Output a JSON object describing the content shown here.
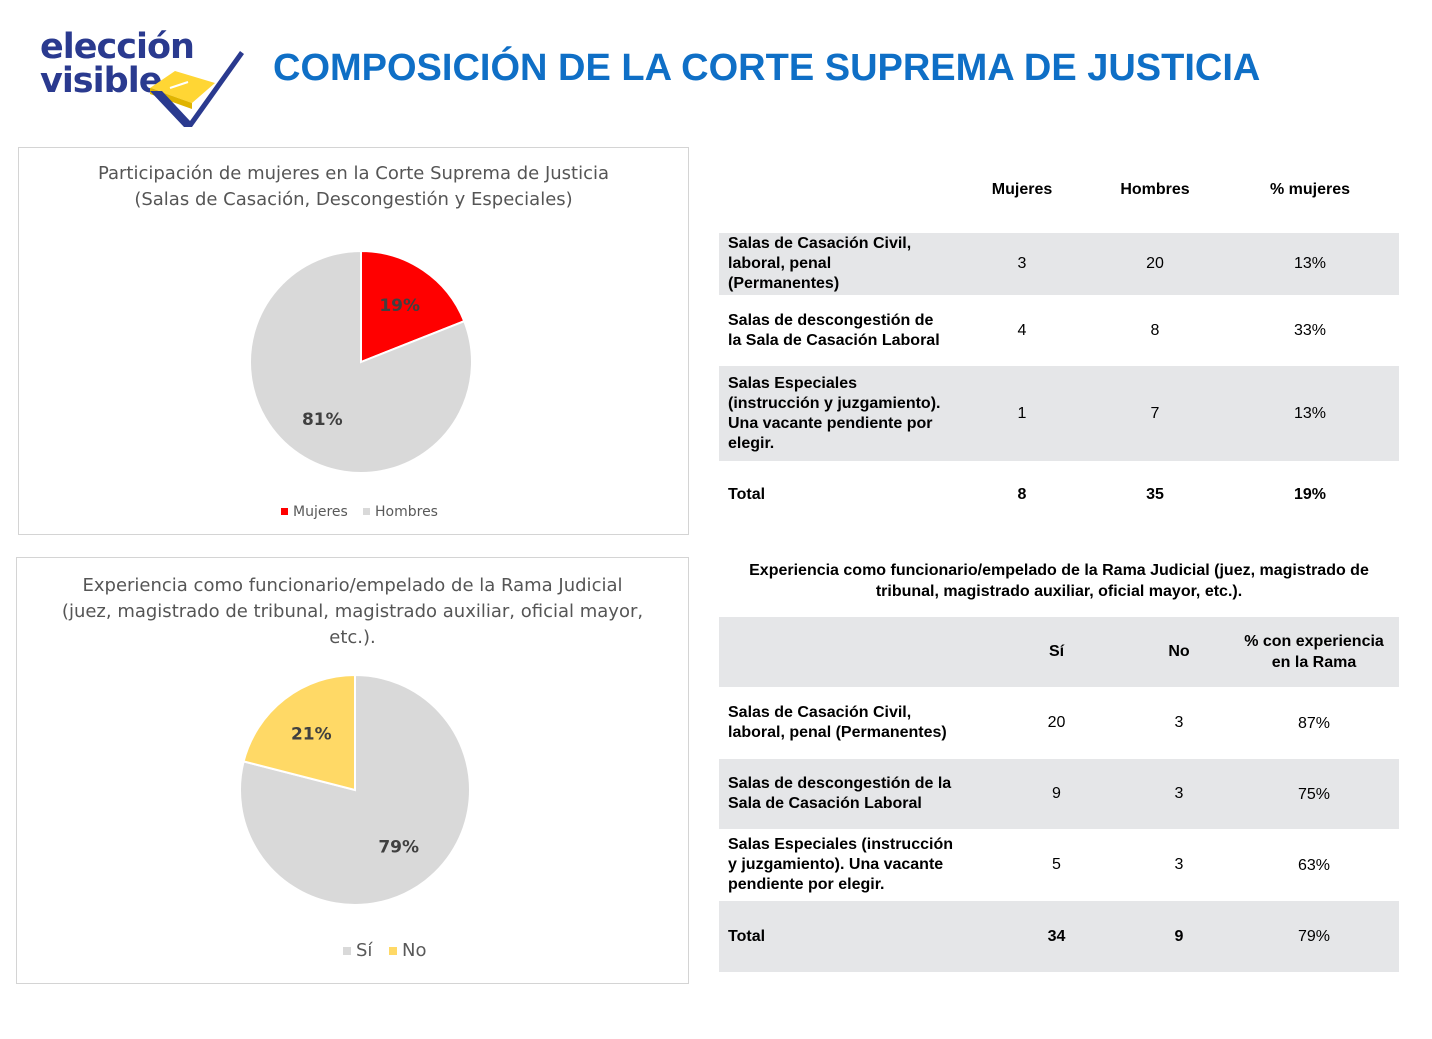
{
  "logo": {
    "line1": "elección",
    "line2": "visible"
  },
  "page_title": "COMPOSICIÓN DE LA CORTE SUPREMA DE JUSTICIA",
  "colors": {
    "title_blue": "#0f6fc6",
    "logo_navy": "#2a3a8f",
    "logo_yellow": "#ffd634",
    "red": "#ff0000",
    "grey": "#d9d9d9",
    "yellow": "#ffd966",
    "table_shade": "#e5e6e8"
  },
  "chart_data": [
    {
      "type": "pie",
      "title": "Participación de mujeres en la Corte Suprema de Justicia",
      "subtitle": "(Salas de Casación, Descongestión y Especiales)",
      "categories": [
        "Mujeres",
        "Hombres"
      ],
      "values": [
        19,
        81
      ],
      "labels": [
        "19%",
        "81%"
      ],
      "colors": [
        "#ff0000",
        "#d9d9d9"
      ],
      "legend": [
        "Mujeres",
        "Hombres"
      ],
      "legend_position": "bottom"
    },
    {
      "type": "pie",
      "title": "Experiencia como funcionario/empelado  de la Rama Judicial",
      "subtitle": "(juez, magistrado de tribunal, magistrado auxiliar, oficial mayor,",
      "subtitle2": "etc.).",
      "categories": [
        "Sí",
        "No"
      ],
      "values": [
        79,
        21
      ],
      "labels": [
        "79%",
        "21%"
      ],
      "colors": [
        "#d9d9d9",
        "#ffd966"
      ],
      "legend": [
        "Sí",
        "No"
      ],
      "legend_position": "bottom"
    }
  ],
  "table1": {
    "headers": [
      "",
      "Mujeres",
      "Hombres",
      "% mujeres"
    ],
    "rows": [
      {
        "label": [
          "Salas de Casación Civil,",
          "laboral, penal",
          "(Permanentes)"
        ],
        "a": "3",
        "b": "20",
        "c": "13%"
      },
      {
        "label": [
          "Salas de descongestión de",
          "la Sala de Casación Laboral"
        ],
        "a": "4",
        "b": "8",
        "c": "33%"
      },
      {
        "label": [
          "Salas Especiales",
          "(instrucción y juzgamiento).",
          "Una vacante pendiente por",
          "elegir."
        ],
        "a": "1",
        "b": "7",
        "c": "13%"
      },
      {
        "label": [
          "Total"
        ],
        "a": "8",
        "b": "35",
        "c": "19%"
      }
    ]
  },
  "table2": {
    "title_line1": "Experiencia como funcionario/empelado de la Rama Judicial (juez, magistrado de",
    "title_line2": "tribunal, magistrado auxiliar, oficial mayor, etc.).",
    "headers": [
      "",
      "Sí",
      "No",
      "% con experiencia",
      "en la Rama"
    ],
    "rows": [
      {
        "label": [
          "Salas de Casación Civil,",
          "laboral, penal (Permanentes)"
        ],
        "a": "20",
        "b": "3",
        "c": "87%"
      },
      {
        "label": [
          "Salas de descongestión de la",
          "Sala de Casación Laboral"
        ],
        "a": "9",
        "b": "3",
        "c": "75%"
      },
      {
        "label": [
          "Salas Especiales (instrucción",
          "y juzgamiento). Una vacante",
          "pendiente por elegir."
        ],
        "a": "5",
        "b": "3",
        "c": "63%"
      },
      {
        "label": [
          "Total"
        ],
        "a": "34",
        "b": "9",
        "c": "79%"
      }
    ]
  }
}
